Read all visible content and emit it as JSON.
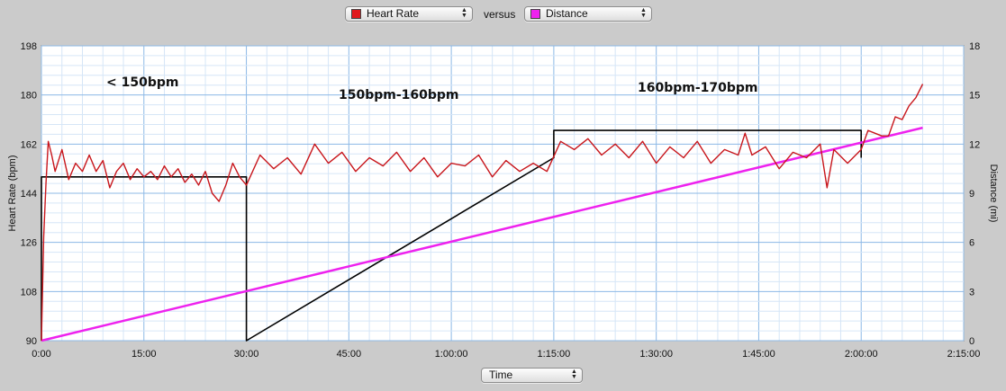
{
  "controls": {
    "left_select": {
      "label": "Heart Rate",
      "color": "#e0191d"
    },
    "versus_text": "versus",
    "right_select": {
      "label": "Distance",
      "color": "#ee22ee"
    },
    "x_select": {
      "label": "Time"
    }
  },
  "chart_data": {
    "type": "line",
    "xlabel": "",
    "ylabel": "Heart Rate (bpm)",
    "y2label": "Distance (mi)",
    "x_range_seconds": [
      0,
      8100
    ],
    "ylim": [
      90,
      198
    ],
    "y2lim": [
      0,
      18
    ],
    "x_ticks": [
      "0:00",
      "15:00",
      "30:00",
      "45:00",
      "1:00:00",
      "1:15:00",
      "1:30:00",
      "1:45:00",
      "2:00:00",
      "2:15:00"
    ],
    "y_ticks": [
      "90",
      "108",
      "126",
      "144",
      "162",
      "180",
      "198"
    ],
    "y2_ticks": [
      "0",
      "3",
      "6",
      "9",
      "12",
      "15",
      "18"
    ],
    "grid": true,
    "annotations": [
      "< 150bpm",
      "150bpm-160bpm",
      "160bpm-170bpm"
    ],
    "series": [
      {
        "name": "Heart Rate",
        "axis": "left",
        "color": "#c8161c",
        "x": [
          "0:00",
          "0:20",
          "0:40",
          "1:00",
          "1:30",
          "2:00",
          "3:00",
          "4:00",
          "5:00",
          "6:00",
          "7:00",
          "8:00",
          "9:00",
          "10:00",
          "11:00",
          "12:00",
          "13:00",
          "14:00",
          "15:00",
          "16:00",
          "17:00",
          "18:00",
          "19:00",
          "20:00",
          "21:00",
          "22:00",
          "23:00",
          "24:00",
          "25:00",
          "26:00",
          "27:00",
          "28:00",
          "29:00",
          "30:00",
          "32:00",
          "34:00",
          "36:00",
          "38:00",
          "40:00",
          "42:00",
          "44:00",
          "46:00",
          "48:00",
          "50:00",
          "52:00",
          "54:00",
          "56:00",
          "58:00",
          "1:00:00",
          "1:02:00",
          "1:04:00",
          "1:06:00",
          "1:08:00",
          "1:10:00",
          "1:12:00",
          "1:14:00",
          "1:16:00",
          "1:18:00",
          "1:20:00",
          "1:22:00",
          "1:24:00",
          "1:26:00",
          "1:28:00",
          "1:30:00",
          "1:32:00",
          "1:34:00",
          "1:36:00",
          "1:38:00",
          "1:40:00",
          "1:42:00",
          "1:43:00",
          "1:44:00",
          "1:46:00",
          "1:48:00",
          "1:50:00",
          "1:52:00",
          "1:54:00",
          "1:55:00",
          "1:56:00",
          "1:58:00",
          "2:00:00",
          "2:01:00",
          "2:02:00",
          "2:03:00",
          "2:04:00",
          "2:05:00",
          "2:06:00",
          "2:07:00",
          "2:08:00",
          "2:09:00"
        ],
        "values": [
          90,
          128,
          148,
          163,
          158,
          152,
          160,
          149,
          155,
          152,
          158,
          152,
          156,
          146,
          152,
          155,
          149,
          153,
          150,
          152,
          149,
          154,
          150,
          153,
          148,
          151,
          147,
          152,
          144,
          141,
          147,
          155,
          150,
          147,
          158,
          153,
          157,
          151,
          162,
          155,
          159,
          152,
          157,
          154,
          159,
          152,
          157,
          150,
          155,
          154,
          158,
          150,
          156,
          152,
          155,
          152,
          163,
          160,
          164,
          158,
          162,
          157,
          163,
          155,
          161,
          157,
          163,
          155,
          160,
          158,
          166,
          158,
          161,
          153,
          159,
          157,
          162,
          146,
          160,
          155,
          160,
          167,
          166,
          165,
          165,
          172,
          171,
          176,
          179,
          184
        ]
      },
      {
        "name": "Distance",
        "axis": "right",
        "color": "#ee22ee",
        "x": [
          "0:00",
          "2:09:00"
        ],
        "values": [
          0,
          13
        ]
      },
      {
        "name": "Heart Rate Zones",
        "axis": "left",
        "color": "#000000",
        "x": [
          "0:00",
          "0:00",
          "30:00",
          "30:00",
          "1:15:00",
          "1:15:00",
          "2:00:00",
          "2:00:00"
        ],
        "values": [
          90,
          150,
          150,
          90,
          157,
          167,
          167,
          157
        ]
      }
    ]
  }
}
